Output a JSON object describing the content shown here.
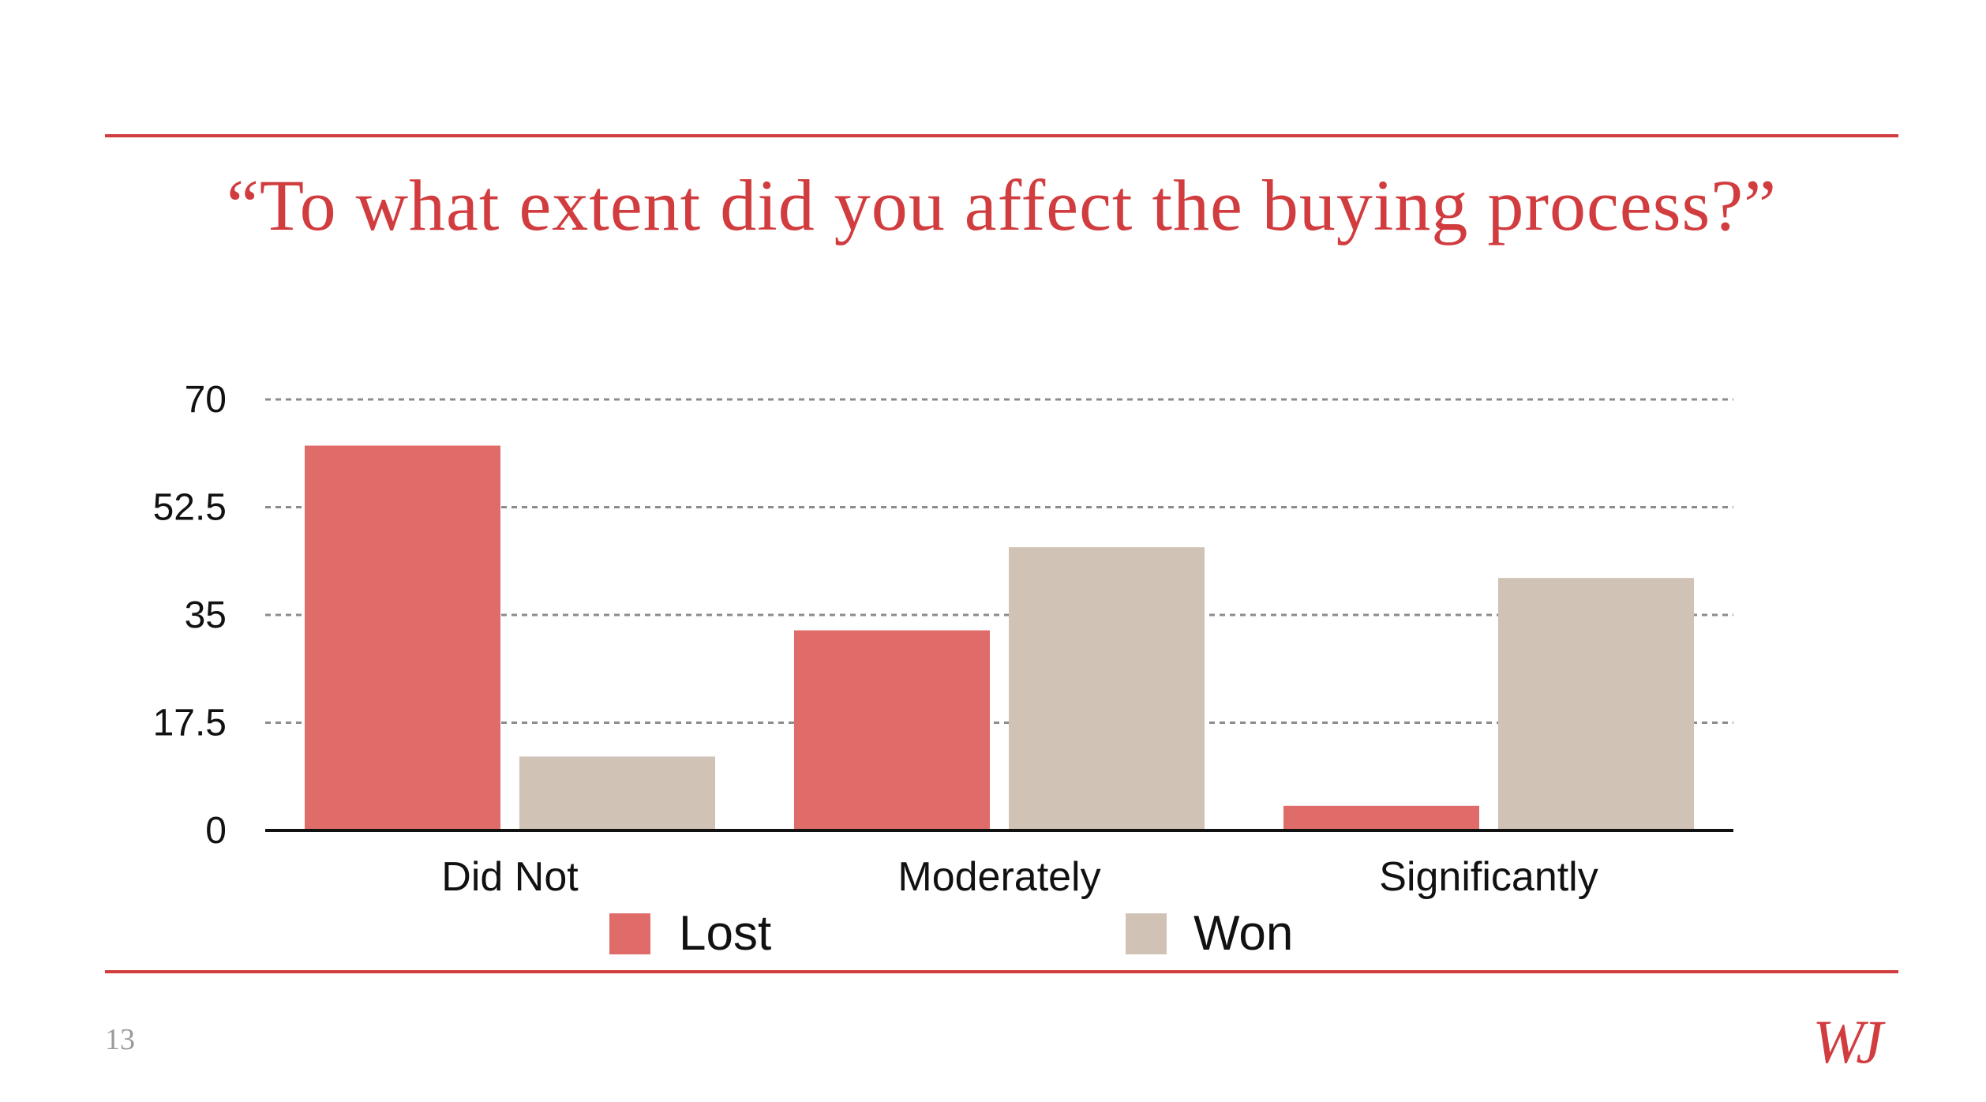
{
  "slide": {
    "title": "“To what extent did you affect the buying process?”",
    "page_number": "13",
    "logo_text": "WJ",
    "accent_color": "#d13c3f"
  },
  "chart_data": {
    "type": "bar",
    "title": "",
    "xlabel": "",
    "ylabel": "",
    "categories": [
      "Did Not",
      "Moderately",
      "Significantly"
    ],
    "series": [
      {
        "name": "Lost",
        "color": "#e06c6a",
        "values": [
          62.5,
          32.5,
          4
        ]
      },
      {
        "name": "Won",
        "color": "#d0c2b4",
        "values": [
          12,
          46,
          41
        ]
      }
    ],
    "ylim": [
      0,
      70
    ],
    "yticks": [
      0,
      17.5,
      35,
      52.5,
      70
    ],
    "ytick_labels": [
      "0",
      "17.5",
      "35",
      "52.5",
      "70"
    ],
    "grid": true,
    "grid_style": "dashed",
    "legend_position": "bottom"
  }
}
